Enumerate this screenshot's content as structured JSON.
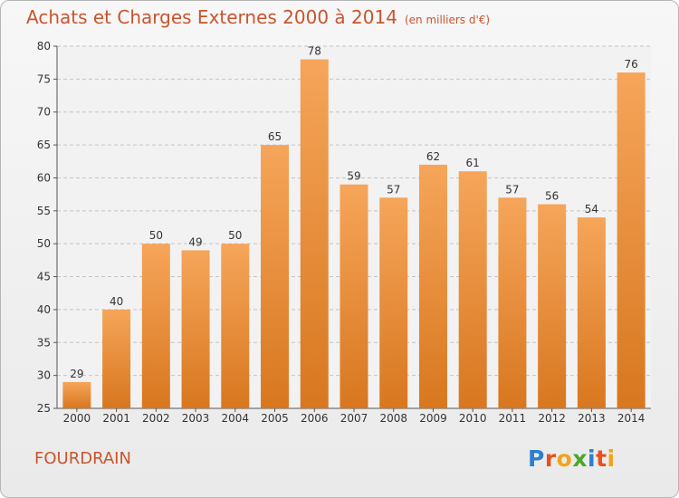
{
  "title": "Achats et Charges Externes 2000 à 2014",
  "subtitle": "(en milliers d'€)",
  "city": "FOURDRAIN",
  "logo": {
    "text": [
      "P",
      "r",
      "o",
      "x",
      "i",
      "t",
      "i"
    ],
    "colors": [
      "#2a7fcf",
      "#e8501e",
      "#f2a31b",
      "#4aa829",
      "#2a7fcf",
      "#e8501e",
      "#f2a31b"
    ]
  },
  "colors": {
    "title": "#c8552e",
    "bar_top": "#f6a55a",
    "bar_bottom": "#d8771f"
  },
  "chart_data": {
    "type": "bar",
    "categories": [
      "2000",
      "2001",
      "2002",
      "2003",
      "2004",
      "2005",
      "2006",
      "2007",
      "2008",
      "2009",
      "2010",
      "2011",
      "2012",
      "2013",
      "2014"
    ],
    "values": [
      29,
      40,
      50,
      49,
      50,
      65,
      78,
      59,
      57,
      62,
      61,
      57,
      56,
      54,
      76
    ],
    "ylim": [
      25,
      80
    ],
    "yticks": [
      25,
      30,
      35,
      40,
      45,
      50,
      55,
      60,
      65,
      70,
      75,
      80
    ],
    "grid": true,
    "title": "Achats et Charges Externes 2000 à 2014",
    "xlabel": "",
    "ylabel": ""
  }
}
